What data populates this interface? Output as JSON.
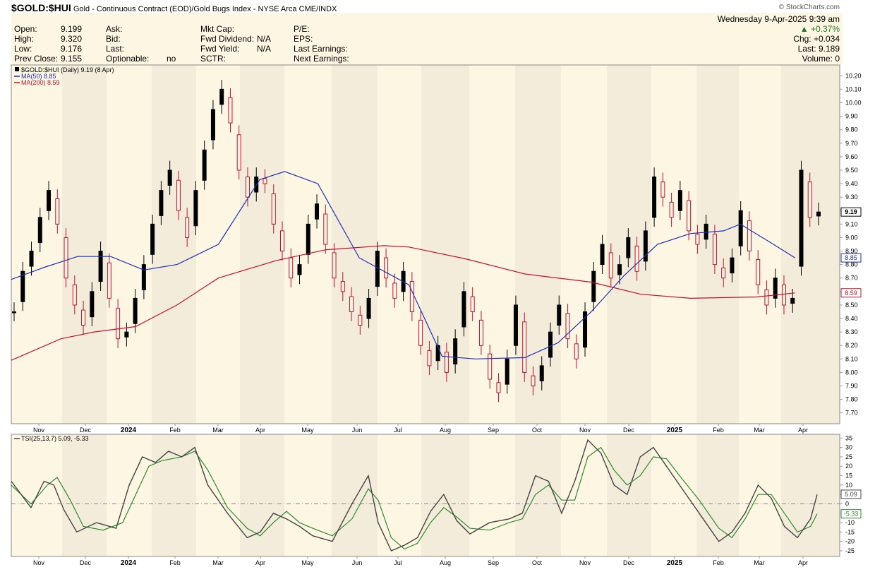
{
  "header": {
    "symbol": "$GOLD:$HUI",
    "description": "Gold - Continuous Contract (EOD)/Gold Bugs Index - NYSE Arca",
    "exchange": "CME/INDX",
    "brand": "© StockCharts.com",
    "datetime": "Wednesday  9-Apr-2025  9:39 am"
  },
  "quote": {
    "col1": [
      {
        "label": "Open:",
        "value": "9.199"
      },
      {
        "label": "High:",
        "value": "9.320"
      },
      {
        "label": "Low:",
        "value": "9.176"
      },
      {
        "label": "Prev Close:",
        "value": "9.155"
      }
    ],
    "col2": [
      {
        "label": "Ask:",
        "value": ""
      },
      {
        "label": "Bid:",
        "value": ""
      },
      {
        "label": "Last:",
        "value": ""
      },
      {
        "label": "Optionable:",
        "value": "no"
      }
    ],
    "col3": [
      {
        "label": "Mkt Cap:",
        "value": ""
      },
      {
        "label": "Fwd Dividend:",
        "value": "N/A"
      },
      {
        "label": "Fwd Yield:",
        "value": "N/A"
      },
      {
        "label": "SCTR:",
        "value": ""
      }
    ],
    "col4": [
      {
        "label": "P/E:",
        "value": ""
      },
      {
        "label": "EPS:",
        "value": ""
      },
      {
        "label": "Last Earnings:",
        "value": ""
      },
      {
        "label": "Next Earnings:",
        "value": ""
      }
    ],
    "change_pct": "+0.37%",
    "change": "Chg: +0.034",
    "last": "Last:  9.189",
    "volume": "Volume:   0"
  },
  "chart_data": [
    {
      "type": "candlestick",
      "legend": [
        "$GOLD:$HUI (Daily) 9.19 (8 Apr)",
        "MA(50) 8.85",
        "MA(200) 8.59"
      ],
      "ylim": [
        7.62,
        10.28
      ],
      "y_ticks": [
        "10.20",
        "10.10",
        "10.00",
        "9.90",
        "9.80",
        "9.70",
        "9.60",
        "9.50",
        "9.40",
        "9.30",
        "9.20",
        "9.10",
        "9.00",
        "8.90",
        "8.80",
        "8.70",
        "8.60",
        "8.50",
        "8.40",
        "8.30",
        "8.20",
        "8.10",
        "8.00",
        "7.90",
        "7.80",
        "7.70"
      ],
      "x_labels": [
        "Nov",
        "Dec",
        "2024",
        "Feb",
        "Mar",
        "Apr",
        "May",
        "Jun",
        "Jul",
        "Aug",
        "Sep",
        "Oct",
        "Nov",
        "Dec",
        "2025",
        "Feb",
        "Mar",
        "Apr"
      ],
      "last_value_labels": [
        {
          "text": "9.19",
          "value": 9.19
        },
        {
          "text": "8.85",
          "value": 8.85
        },
        {
          "text": "8.59",
          "value": 8.59
        }
      ],
      "close_trace": [
        8.45,
        8.75,
        8.9,
        9.15,
        9.35,
        9.1,
        8.7,
        8.5,
        8.35,
        8.6,
        8.9,
        8.55,
        8.25,
        8.3,
        8.55,
        8.8,
        9.1,
        9.35,
        9.5,
        9.2,
        9.0,
        9.35,
        9.65,
        9.95,
        10.1,
        9.85,
        9.5,
        9.3,
        9.45,
        9.4,
        9.1,
        8.9,
        8.7,
        8.8,
        9.1,
        9.25,
        8.95,
        8.7,
        8.6,
        8.45,
        8.35,
        8.55,
        8.9,
        8.7,
        8.55,
        8.75,
        8.45,
        8.2,
        8.05,
        8.2,
        8.0,
        8.25,
        8.6,
        8.45,
        8.2,
        7.95,
        7.85,
        8.1,
        8.5,
        8.0,
        7.9,
        8.05,
        8.3,
        8.5,
        8.25,
        8.1,
        8.45,
        8.75,
        8.95,
        8.7,
        8.8,
        9.0,
        8.75,
        9.05,
        9.45,
        9.3,
        9.15,
        9.35,
        9.05,
        8.95,
        9.1,
        8.8,
        8.7,
        8.85,
        9.2,
        8.9,
        8.65,
        8.5,
        8.7,
        8.5,
        8.55,
        9.5,
        9.15,
        9.19
      ],
      "ma50": [
        [
          0,
          8.69
        ],
        [
          0.04,
          8.78
        ],
        [
          0.08,
          8.86
        ],
        [
          0.12,
          8.86
        ],
        [
          0.16,
          8.76
        ],
        [
          0.2,
          8.8
        ],
        [
          0.25,
          8.95
        ],
        [
          0.3,
          9.43
        ],
        [
          0.33,
          9.49
        ],
        [
          0.37,
          9.4
        ],
        [
          0.42,
          8.85
        ],
        [
          0.48,
          8.65
        ],
        [
          0.52,
          8.12
        ],
        [
          0.56,
          8.1
        ],
        [
          0.62,
          8.11
        ],
        [
          0.66,
          8.22
        ],
        [
          0.7,
          8.45
        ],
        [
          0.74,
          8.72
        ],
        [
          0.78,
          8.95
        ],
        [
          0.82,
          9.03
        ],
        [
          0.86,
          9.05
        ],
        [
          0.88,
          9.1
        ],
        [
          0.92,
          8.95
        ],
        [
          0.946,
          8.85
        ]
      ],
      "ma200": [
        [
          0,
          8.09
        ],
        [
          0.06,
          8.25
        ],
        [
          0.1,
          8.3
        ],
        [
          0.15,
          8.34
        ],
        [
          0.2,
          8.5
        ],
        [
          0.25,
          8.7
        ],
        [
          0.32,
          8.83
        ],
        [
          0.38,
          8.91
        ],
        [
          0.45,
          8.94
        ],
        [
          0.48,
          8.93
        ],
        [
          0.55,
          8.84
        ],
        [
          0.62,
          8.73
        ],
        [
          0.7,
          8.67
        ],
        [
          0.76,
          8.58
        ],
        [
          0.82,
          8.55
        ],
        [
          0.9,
          8.56
        ],
        [
          0.946,
          8.59
        ]
      ]
    },
    {
      "type": "line",
      "legend": "TSI(25,13,7) 5.09, -5.33",
      "ylim": [
        -28,
        37
      ],
      "y_ticks": [
        "35",
        "30",
        "25",
        "20",
        "15",
        "10",
        "5",
        "0",
        "-5",
        "-10",
        "-15",
        "-20",
        "-25"
      ],
      "x_labels": [
        "Nov",
        "Dec",
        "2024",
        "Feb",
        "Mar",
        "Apr",
        "May",
        "Jun",
        "Jul",
        "Aug",
        "Sep",
        "Oct",
        "Nov",
        "Dec",
        "2025",
        "Feb",
        "Mar",
        "Apr"
      ],
      "last_value_labels": [
        {
          "text": "5.09",
          "value": 5.09
        },
        {
          "text": "-5.33",
          "value": -5.33
        }
      ],
      "tsi": [
        [
          0,
          12
        ],
        [
          0.03,
          -2
        ],
        [
          0.05,
          12
        ],
        [
          0.065,
          10
        ],
        [
          0.08,
          -3
        ],
        [
          0.1,
          -15
        ],
        [
          0.13,
          -10
        ],
        [
          0.16,
          -13
        ],
        [
          0.18,
          10
        ],
        [
          0.2,
          25
        ],
        [
          0.22,
          22
        ],
        [
          0.24,
          28
        ],
        [
          0.26,
          25
        ],
        [
          0.28,
          30
        ],
        [
          0.3,
          10
        ],
        [
          0.33,
          -5
        ],
        [
          0.36,
          -18
        ],
        [
          0.38,
          -15
        ],
        [
          0.4,
          -5
        ],
        [
          0.42,
          -8
        ],
        [
          0.44,
          -12
        ],
        [
          0.46,
          -17
        ],
        [
          0.49,
          -20
        ],
        [
          0.52,
          0
        ],
        [
          0.545,
          15
        ],
        [
          0.56,
          -10
        ],
        [
          0.58,
          -25
        ],
        [
          0.6,
          -22
        ],
        [
          0.62,
          -18
        ],
        [
          0.64,
          -4
        ],
        [
          0.66,
          5
        ],
        [
          0.68,
          -9
        ],
        [
          0.7,
          -16
        ],
        [
          0.73,
          -10
        ],
        [
          0.76,
          -8
        ],
        [
          0.78,
          -5
        ],
        [
          0.8,
          15
        ],
        [
          0.82,
          12
        ],
        [
          0.84,
          -5
        ],
        [
          0.86,
          12
        ],
        [
          0.88,
          34
        ],
        [
          0.9,
          27
        ],
        [
          0.92,
          10
        ],
        [
          0.94,
          5
        ],
        [
          0.96,
          25
        ],
        [
          0.98,
          30
        ],
        [
          1.0,
          20
        ],
        [
          1.02,
          10
        ],
        [
          1.05,
          -5
        ],
        [
          1.08,
          -20
        ],
        [
          1.1,
          -15
        ],
        [
          1.12,
          -5
        ],
        [
          1.14,
          10
        ],
        [
          1.16,
          3
        ],
        [
          1.18,
          -12
        ],
        [
          1.2,
          -18
        ],
        [
          1.22,
          -8
        ],
        [
          1.23,
          5
        ]
      ],
      "signal": [
        [
          0,
          10
        ],
        [
          0.03,
          0
        ],
        [
          0.055,
          10
        ],
        [
          0.07,
          14
        ],
        [
          0.09,
          2
        ],
        [
          0.11,
          -12
        ],
        [
          0.14,
          -14
        ],
        [
          0.17,
          -10
        ],
        [
          0.19,
          5
        ],
        [
          0.21,
          20
        ],
        [
          0.23,
          23
        ],
        [
          0.26,
          25
        ],
        [
          0.28,
          28
        ],
        [
          0.3,
          18
        ],
        [
          0.33,
          -2
        ],
        [
          0.36,
          -13
        ],
        [
          0.38,
          -17
        ],
        [
          0.4,
          -10
        ],
        [
          0.42,
          -4
        ],
        [
          0.44,
          -10
        ],
        [
          0.46,
          -13
        ],
        [
          0.49,
          -17
        ],
        [
          0.52,
          -8
        ],
        [
          0.545,
          8
        ],
        [
          0.56,
          2
        ],
        [
          0.58,
          -18
        ],
        [
          0.6,
          -24
        ],
        [
          0.62,
          -21
        ],
        [
          0.64,
          -10
        ],
        [
          0.66,
          -2
        ],
        [
          0.68,
          -7
        ],
        [
          0.7,
          -13
        ],
        [
          0.73,
          -14
        ],
        [
          0.76,
          -10
        ],
        [
          0.78,
          -8
        ],
        [
          0.8,
          5
        ],
        [
          0.82,
          10
        ],
        [
          0.84,
          2
        ],
        [
          0.86,
          2
        ],
        [
          0.88,
          25
        ],
        [
          0.9,
          30
        ],
        [
          0.92,
          18
        ],
        [
          0.94,
          10
        ],
        [
          0.96,
          15
        ],
        [
          0.98,
          25
        ],
        [
          1.0,
          24
        ],
        [
          1.02,
          15
        ],
        [
          1.05,
          2
        ],
        [
          1.08,
          -13
        ],
        [
          1.1,
          -18
        ],
        [
          1.12,
          -8
        ],
        [
          1.14,
          5
        ],
        [
          1.16,
          5
        ],
        [
          1.18,
          -5
        ],
        [
          1.2,
          -15
        ],
        [
          1.22,
          -12
        ],
        [
          1.23,
          -5.33
        ]
      ]
    }
  ],
  "colors": {
    "up": "#000000",
    "down": "#c8102e",
    "ma50": "#1f2fb4",
    "ma200": "#c8102e",
    "tsi": "#444444",
    "signal": "#2e8b2e",
    "panel_bg": "#fdf6e3",
    "alt_band": "#ede6d3"
  }
}
